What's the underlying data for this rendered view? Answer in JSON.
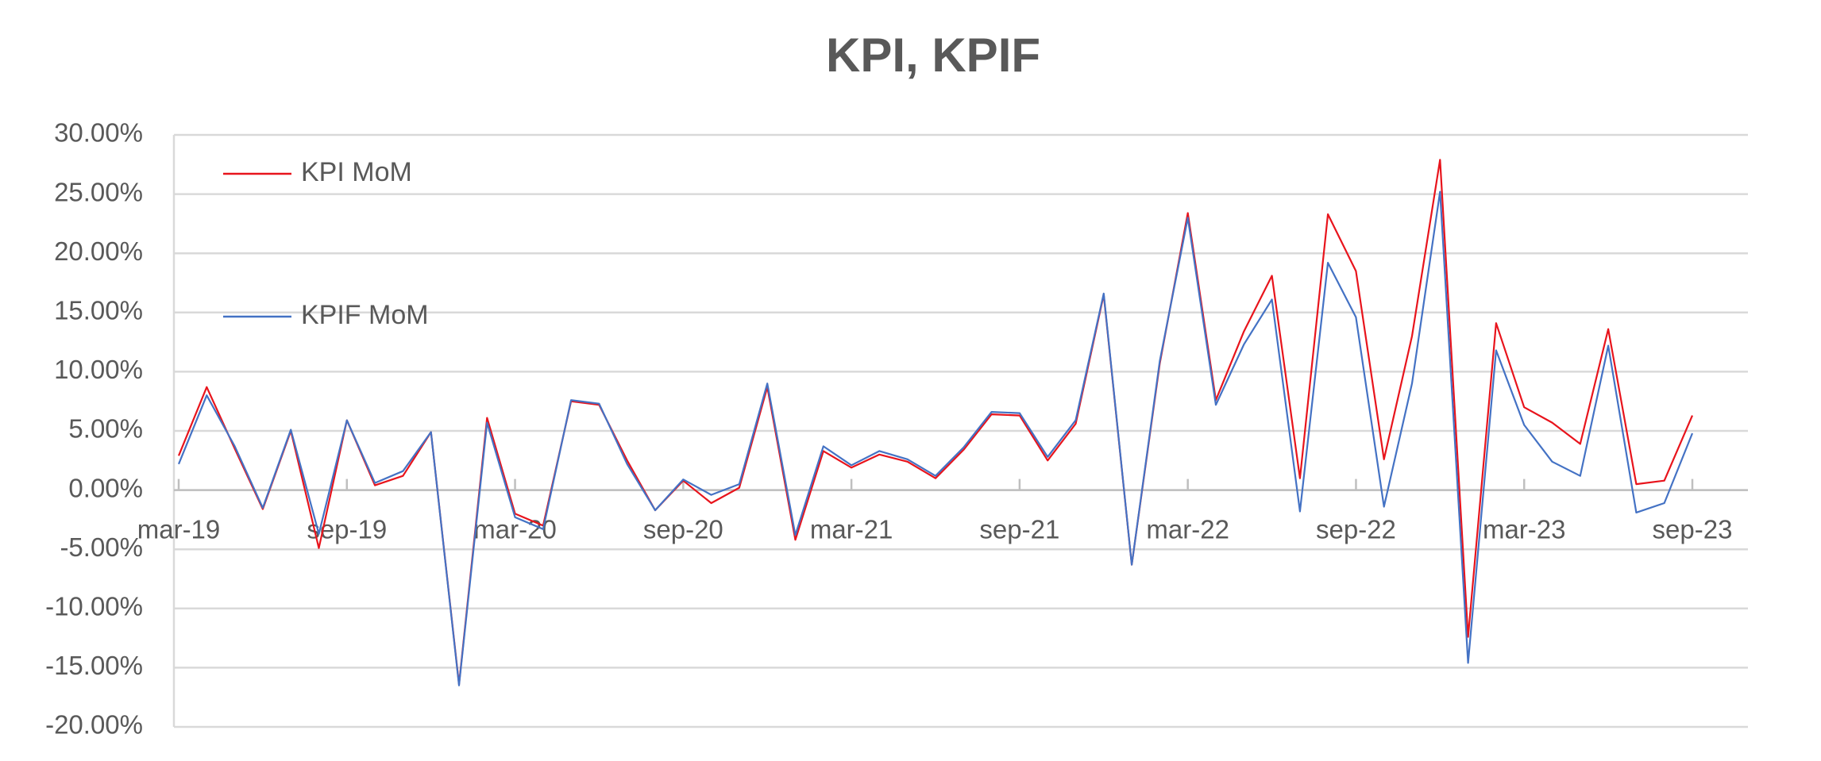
{
  "chart_data": {
    "type": "line",
    "title": "KPI, KPIF",
    "categories": [
      "mar-19",
      null,
      null,
      null,
      null,
      null,
      "sep-19",
      null,
      null,
      null,
      null,
      null,
      "mar-20",
      null,
      null,
      null,
      null,
      null,
      "sep-20",
      null,
      null,
      null,
      null,
      null,
      "mar-21",
      null,
      null,
      null,
      null,
      null,
      "sep-21",
      null,
      null,
      null,
      null,
      null,
      "mar-22",
      null,
      null,
      null,
      null,
      null,
      "sep-22",
      null,
      null,
      null,
      null,
      null,
      "mar-23",
      null,
      null,
      null,
      null,
      null,
      "sep-23"
    ],
    "series": [
      {
        "name": "KPI MoM",
        "color": "#e8141c",
        "values": [
          2.9,
          8.7,
          3.5,
          -1.6,
          5.0,
          -4.9,
          5.9,
          0.4,
          1.2,
          4.9,
          -16.4,
          6.1,
          -2.0,
          -3.0,
          7.5,
          7.2,
          2.5,
          -1.7,
          0.8,
          -1.1,
          0.2,
          8.7,
          -4.2,
          3.3,
          1.9,
          3.0,
          2.4,
          1.0,
          3.4,
          6.4,
          6.3,
          2.5,
          5.6,
          16.5,
          -6.3,
          10.7,
          23.4,
          7.6,
          13.4,
          18.1,
          1.0,
          23.3,
          18.5,
          2.6,
          13.0,
          27.9,
          -12.4,
          14.1,
          7.0,
          5.7,
          3.9,
          13.6,
          0.5,
          0.8,
          6.3
        ]
      },
      {
        "name": "KPIF MoM",
        "color": "#4472c4",
        "values": [
          2.2,
          8.0,
          3.7,
          -1.5,
          5.1,
          -3.7,
          5.9,
          0.6,
          1.6,
          4.9,
          -16.5,
          5.7,
          -2.3,
          -3.3,
          7.6,
          7.3,
          2.2,
          -1.7,
          0.9,
          -0.4,
          0.5,
          9.0,
          -3.8,
          3.7,
          2.1,
          3.3,
          2.6,
          1.2,
          3.6,
          6.6,
          6.5,
          2.8,
          5.9,
          16.6,
          -6.3,
          10.9,
          23.0,
          7.2,
          12.3,
          16.1,
          -1.8,
          19.2,
          14.6,
          -1.4,
          9.0,
          25.2,
          -14.6,
          11.8,
          5.5,
          2.4,
          1.2,
          12.2,
          -1.9,
          -1.1,
          4.8
        ]
      }
    ],
    "ylim": [
      -20,
      30
    ],
    "yticks": [
      {
        "value": -20,
        "label": "-20.00%"
      },
      {
        "value": -15,
        "label": "-15.00%"
      },
      {
        "value": -10,
        "label": "-10.00%"
      },
      {
        "value": -5,
        "label": "-5.00%"
      },
      {
        "value": 0,
        "label": "0.00%"
      },
      {
        "value": 5,
        "label": "5.00%"
      },
      {
        "value": 10,
        "label": "10.00%"
      },
      {
        "value": 15,
        "label": "15.00%"
      },
      {
        "value": 20,
        "label": "20.00%"
      },
      {
        "value": 25,
        "label": "25.00%"
      },
      {
        "value": 30,
        "label": "30.00%"
      }
    ],
    "grid": true,
    "legend": "upper left"
  }
}
